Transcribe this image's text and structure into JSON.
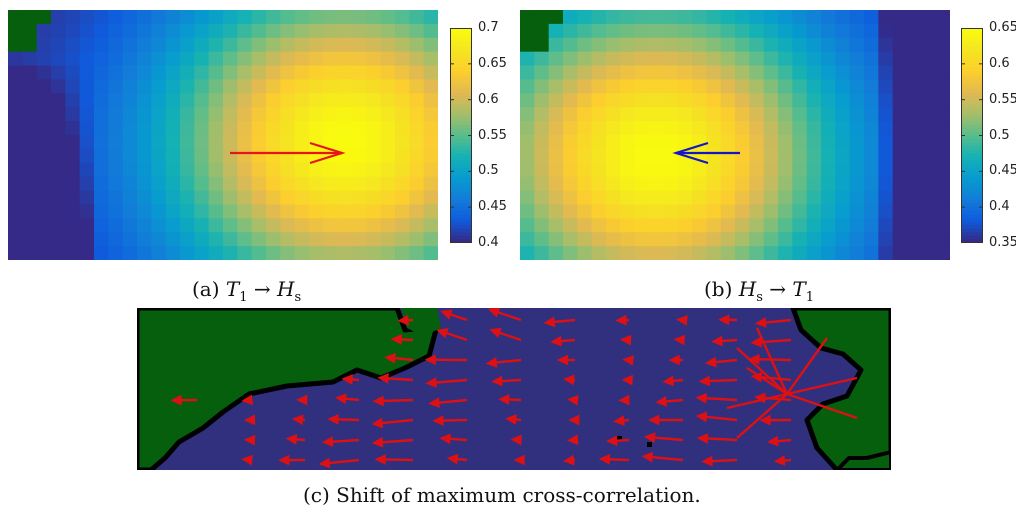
{
  "figure": {
    "panels": [
      {
        "id": "a",
        "caption": {
          "label": "(a)",
          "from_var": "T",
          "from_sub": "1",
          "arrow": "→",
          "to_var": "H",
          "to_sub": "s"
        },
        "colorbar": {
          "ticks": [
            "0.7",
            "0.65",
            "0.6",
            "0.55",
            "0.5",
            "0.45",
            "0.4"
          ],
          "min": 0.4,
          "max": 0.7
        },
        "shift_arrow": {
          "color": "#e8141b",
          "direction": "east"
        },
        "field": {
          "peak_col": 23,
          "peak_row": 9,
          "peak_value": 0.7,
          "edge_value": 0.4,
          "land_corner": "top-left"
        }
      },
      {
        "id": "b",
        "caption": {
          "label": "(b)",
          "from_var": "H",
          "from_sub": "s",
          "arrow": "→",
          "to_var": "T",
          "to_sub": "1"
        },
        "colorbar": {
          "ticks": [
            "0.65",
            "0.6",
            "0.55",
            "0.5",
            "0.45",
            "0.4",
            "0.35"
          ],
          "min": 0.35,
          "max": 0.65
        },
        "shift_arrow": {
          "color": "#1515c8",
          "direction": "west"
        },
        "field": {
          "peak_col": 9,
          "peak_row": 10,
          "peak_value": 0.65,
          "edge_value": 0.35,
          "land_corner": "top-left"
        }
      }
    ],
    "map_panel": {
      "caption": "(c) Shift of maximum cross-correlation.",
      "colors": {
        "ocean": "#30307e",
        "land": "#065f0c",
        "coast": "#000000",
        "arrow": "#dd1014"
      }
    }
  }
}
